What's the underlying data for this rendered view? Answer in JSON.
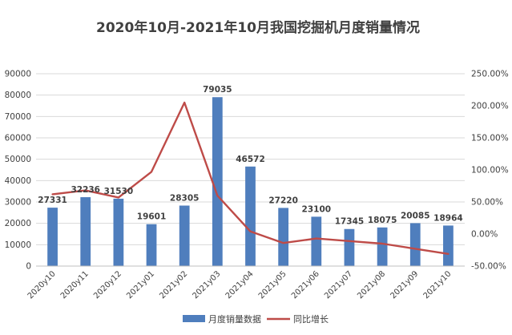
{
  "chart_data": {
    "type": "bar",
    "title": "2020年10月-2021年10月我国挖掘机月度销量情况",
    "categories": [
      "2020y10",
      "2020y11",
      "2020y12",
      "2021y01",
      "2021y02",
      "2021y03",
      "2021y04",
      "2021y05",
      "2021y06",
      "2021y07",
      "2021y08",
      "2021y09",
      "2021y10"
    ],
    "series": [
      {
        "name": "月度销量数据",
        "type": "bar",
        "axis": "left",
        "color": "#4f7ebd",
        "values": [
          27331,
          32236,
          31530,
          19601,
          28305,
          79035,
          46572,
          27220,
          23100,
          17345,
          18075,
          20085,
          18964
        ],
        "labels": [
          "27331",
          "32236",
          "31530",
          "19601",
          "28305",
          "79035",
          "46572",
          "27220",
          "23100",
          "17345",
          "18075",
          "20085",
          "18964"
        ]
      },
      {
        "name": "同比增长",
        "type": "line",
        "axis": "right",
        "color": "#be4b48",
        "values": [
          62,
          68,
          57,
          97,
          205,
          60,
          4,
          -14,
          -7,
          -11,
          -15,
          -23,
          -31
        ]
      }
    ],
    "ylim": [
      0,
      90000
    ],
    "yticks": [
      "0",
      "10000",
      "20000",
      "30000",
      "40000",
      "50000",
      "60000",
      "70000",
      "80000",
      "90000"
    ],
    "y2lim": [
      -50,
      250
    ],
    "y2ticks": [
      "-50.00%",
      "0.00%",
      "50.00%",
      "100.00%",
      "150.00%",
      "200.00%",
      "250.00%"
    ],
    "grid": true,
    "legend_position": "bottom"
  }
}
